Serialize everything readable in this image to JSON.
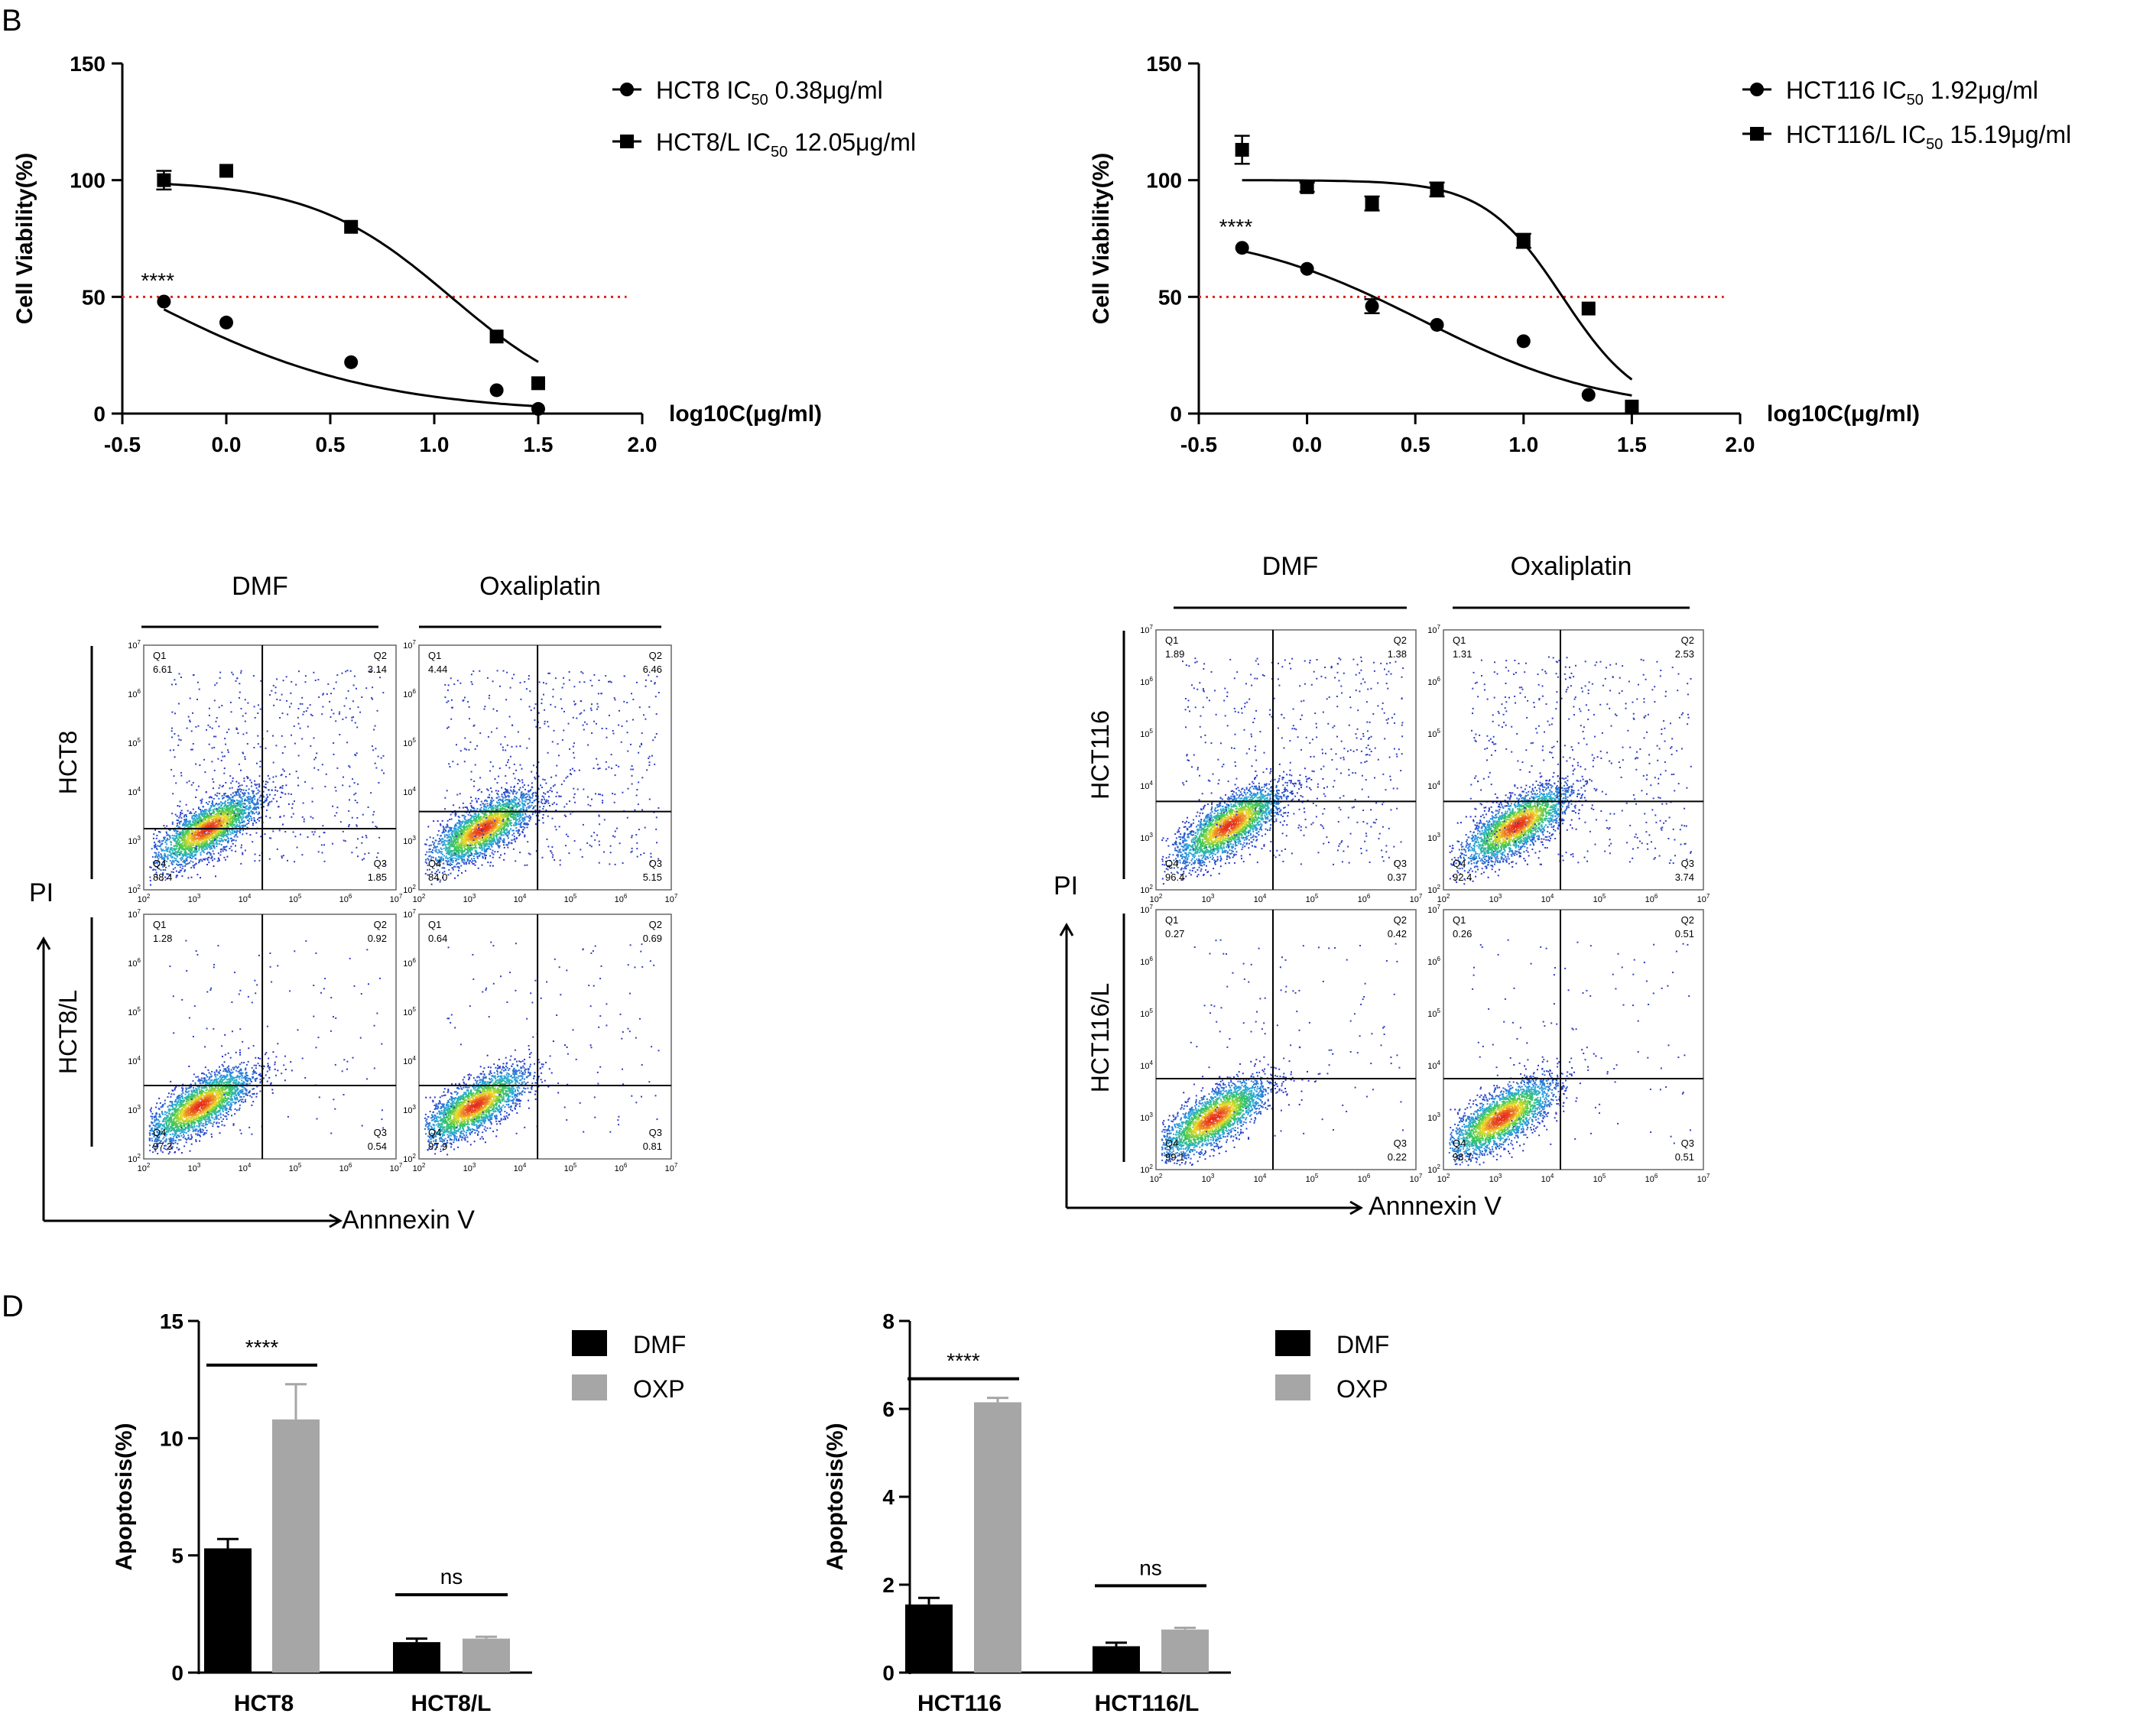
{
  "panel_labels": [
    "B",
    "D"
  ],
  "colors": {
    "ic50_line": "#e02020",
    "dmf": "#000000",
    "oxp": "#a6a6a6",
    "axis": "#000000"
  },
  "chart_data": [
    {
      "id": "viability_hct8",
      "type": "scatter",
      "xlabel": "log10C(μg/ml)",
      "ylabel": "Cell Viability(%)",
      "xlim": [
        -0.5,
        2.0
      ],
      "ylim": [
        0,
        150
      ],
      "xticks": [
        "-0.5",
        "0.0",
        "0.5",
        "1.0",
        "1.5",
        "2.0"
      ],
      "yticks": [
        "0",
        "50",
        "100",
        "150"
      ],
      "reference_line": 50,
      "annotation": "****",
      "series": [
        {
          "name": "HCT8",
          "ic50_label": "IC",
          "ic50_sub": "50",
          "ic50_value": "0.38μg/ml",
          "marker": "circle",
          "x": [
            -0.3,
            0.0,
            0.6,
            1.3,
            1.5
          ],
          "y": [
            48,
            39,
            22,
            10,
            2
          ],
          "err": [
            0,
            0,
            0,
            0,
            0
          ],
          "fit": {
            "top": 100,
            "bottom": 0,
            "logec50": -0.42,
            "hill": 0.78,
            "xrange": [
              -0.3,
              1.5
            ]
          }
        },
        {
          "name": "HCT8/L",
          "ic50_label": "IC",
          "ic50_sub": "50",
          "ic50_value": "12.05μg/ml",
          "marker": "square",
          "x": [
            -0.3,
            0.0,
            0.6,
            1.3,
            1.5
          ],
          "y": [
            100,
            104,
            80,
            33,
            13
          ],
          "err": [
            4,
            0,
            0,
            0,
            0
          ],
          "fit": {
            "top": 100,
            "bottom": 0,
            "logec50": 1.08,
            "hill": 1.3,
            "xrange": [
              -0.3,
              1.5
            ]
          }
        }
      ]
    },
    {
      "id": "viability_hct116",
      "type": "scatter",
      "xlabel": "log10C(μg/ml)",
      "ylabel": "Cell Viability(%)",
      "xlim": [
        -0.5,
        2.0
      ],
      "ylim": [
        0,
        150
      ],
      "xticks": [
        "-0.5",
        "0.0",
        "0.5",
        "1.0",
        "1.5",
        "2.0"
      ],
      "yticks": [
        "0",
        "50",
        "100",
        "150"
      ],
      "reference_line": 50,
      "annotation": "****",
      "series": [
        {
          "name": "HCT116",
          "ic50_label": "IC",
          "ic50_sub": "50",
          "ic50_value": "1.92μg/ml",
          "marker": "circle",
          "x": [
            -0.3,
            0.0,
            0.3,
            0.6,
            1.0,
            1.3
          ],
          "y": [
            71,
            62,
            46,
            38,
            31,
            8
          ],
          "err": [
            0,
            0,
            3,
            0,
            0,
            0
          ],
          "fit": {
            "top": 80,
            "bottom": 0,
            "logec50": 0.53,
            "hill": 1.0,
            "xrange": [
              -0.3,
              1.5
            ]
          }
        },
        {
          "name": "HCT116/L",
          "ic50_label": "IC",
          "ic50_sub": "50",
          "ic50_value": "15.19μg/ml",
          "marker": "square",
          "x": [
            -0.3,
            0.0,
            0.3,
            0.6,
            1.0,
            1.3,
            1.5
          ],
          "y": [
            113,
            97,
            90,
            96,
            74,
            45,
            3
          ],
          "err": [
            6,
            2,
            3,
            3,
            3,
            0,
            0
          ],
          "fit": {
            "top": 100,
            "bottom": 0,
            "logec50": 1.18,
            "hill": 2.4,
            "xrange": [
              -0.3,
              1.5
            ]
          }
        }
      ]
    },
    {
      "id": "apoptosis_hct8",
      "type": "bar",
      "ylabel": "Apoptosis(%)",
      "ylim": [
        0,
        15
      ],
      "yticks": [
        "0",
        "5",
        "10",
        "15"
      ],
      "categories": [
        "HCT8",
        "HCT8/L"
      ],
      "significance": [
        "****",
        "ns"
      ],
      "series": [
        {
          "name": "DMF",
          "values": [
            5.3,
            1.3
          ],
          "err": [
            0.4,
            0.15
          ]
        },
        {
          "name": "OXP",
          "values": [
            10.8,
            1.45
          ],
          "err": [
            1.5,
            0.08
          ]
        }
      ]
    },
    {
      "id": "apoptosis_hct116",
      "type": "bar",
      "ylabel": "Apoptosis(%)",
      "ylim": [
        0,
        8
      ],
      "yticks": [
        "0",
        "2",
        "4",
        "6",
        "8"
      ],
      "categories": [
        "HCT116",
        "HCT116/L"
      ],
      "significance": [
        "****",
        "ns"
      ],
      "series": [
        {
          "name": "DMF",
          "values": [
            1.55,
            0.6
          ],
          "err": [
            0.15,
            0.08
          ]
        },
        {
          "name": "OXP",
          "values": [
            6.15,
            0.98
          ],
          "err": [
            0.1,
            0.04
          ]
        }
      ]
    }
  ],
  "flow_cytometry": [
    {
      "id": "flow_hct8",
      "columns": [
        "DMF",
        "Oxaliplatin"
      ],
      "rows": [
        "HCT8",
        "HCT8/L"
      ],
      "y_axis_label": "PI",
      "x_axis_label": "Annnexin V",
      "tick_exponents": [
        "2",
        "3",
        "4",
        "5",
        "6",
        "7"
      ],
      "plots": [
        {
          "q1": "Q1",
          "q1v": "6.61",
          "q2": "Q2",
          "q2v": "3.14",
          "q3": "Q3",
          "q3v": "1.85",
          "q4": "Q4",
          "q4v": "88.4"
        },
        {
          "q1": "Q1",
          "q1v": "4.44",
          "q2": "Q2",
          "q2v": "6.46",
          "q3": "Q3",
          "q3v": "5.15",
          "q4": "Q4",
          "q4v": "84.0"
        },
        {
          "q1": "Q1",
          "q1v": "1.28",
          "q2": "Q2",
          "q2v": "0.92",
          "q3": "Q3",
          "q3v": "0.54",
          "q4": "Q4",
          "q4v": "97.3"
        },
        {
          "q1": "Q1",
          "q1v": "0.64",
          "q2": "Q2",
          "q2v": "0.69",
          "q3": "Q3",
          "q3v": "0.81",
          "q4": "Q4",
          "q4v": "97.9"
        }
      ]
    },
    {
      "id": "flow_hct116",
      "columns": [
        "DMF",
        "Oxaliplatin"
      ],
      "rows": [
        "HCT116",
        "HCT116/L"
      ],
      "y_axis_label": "PI",
      "x_axis_label": "Annnexin V",
      "tick_exponents": [
        "2",
        "3",
        "4",
        "5",
        "6",
        "7"
      ],
      "plots": [
        {
          "q1": "Q1",
          "q1v": "1.89",
          "q2": "Q2",
          "q2v": "1.38",
          "q3": "Q3",
          "q3v": "0.37",
          "q4": "Q4",
          "q4v": "96.4"
        },
        {
          "q1": "Q1",
          "q1v": "1.31",
          "q2": "Q2",
          "q2v": "2.53",
          "q3": "Q3",
          "q3v": "3.74",
          "q4": "Q4",
          "q4v": "92.4"
        },
        {
          "q1": "Q1",
          "q1v": "0.27",
          "q2": "Q2",
          "q2v": "0.42",
          "q3": "Q3",
          "q3v": "0.22",
          "q4": "Q4",
          "q4v": "99.1"
        },
        {
          "q1": "Q1",
          "q1v": "0.26",
          "q2": "Q2",
          "q2v": "0.51",
          "q3": "Q3",
          "q3v": "0.51",
          "q4": "Q4",
          "q4v": "98.7"
        }
      ]
    }
  ]
}
